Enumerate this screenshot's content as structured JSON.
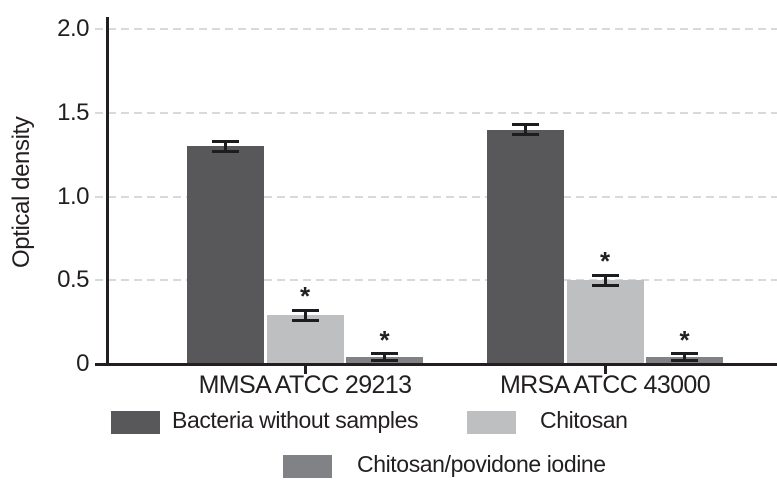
{
  "figure": {
    "background": "#ffffff",
    "text_color": "#231f20",
    "axis_color": "#231f20",
    "grid_color": "#d7d9da",
    "error_bar_color": "#1d1d1f"
  },
  "chart_data": {
    "type": "bar",
    "title": "",
    "xlabel": "",
    "ylabel": "Optical density",
    "ylim": [
      0,
      2.0
    ],
    "grid": "horizontal-dashed",
    "legend_position": "bottom",
    "error_bars": true,
    "significance_marker": "*",
    "yticks": [
      {
        "value": 0,
        "label": "0"
      },
      {
        "value": 0.5,
        "label": "0.5"
      },
      {
        "value": 1.0,
        "label": "1.0"
      },
      {
        "value": 1.5,
        "label": "1.5"
      },
      {
        "value": 2.0,
        "label": "2.0"
      }
    ],
    "categories": [
      "MMSA ATCC 29213",
      "MRSA ATCC 43000"
    ],
    "series": [
      {
        "name": "Bacteria without samples",
        "color": "#58585a",
        "values": [
          1.3,
          1.4
        ],
        "errors": [
          0.03,
          0.03
        ],
        "significance": [
          "",
          ""
        ]
      },
      {
        "name": "Chitosan",
        "color": "#bdbfc1",
        "values": [
          0.29,
          0.5
        ],
        "errors": [
          0.03,
          0.03
        ],
        "significance": [
          "*",
          "*"
        ]
      },
      {
        "name": "Chitosan/povidone iodine",
        "color": "#808285",
        "values": [
          0.04,
          0.04
        ],
        "errors": [
          0.02,
          0.02
        ],
        "significance": [
          "*",
          "*"
        ]
      }
    ]
  }
}
